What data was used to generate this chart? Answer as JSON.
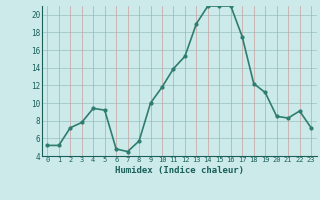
{
  "x": [
    0,
    1,
    2,
    3,
    4,
    5,
    6,
    7,
    8,
    9,
    10,
    11,
    12,
    13,
    14,
    15,
    16,
    17,
    18,
    19,
    20,
    21,
    22,
    23
  ],
  "y": [
    5.2,
    5.2,
    7.2,
    7.8,
    9.4,
    9.2,
    4.8,
    4.5,
    5.7,
    10.0,
    11.8,
    13.9,
    15.3,
    19.0,
    21.0,
    21.0,
    21.0,
    17.5,
    12.2,
    11.2,
    8.5,
    8.3,
    9.1,
    7.2
  ],
  "line_color": "#2e7d6e",
  "marker": "o",
  "marker_size": 2,
  "linewidth": 1.2,
  "bg_color": "#cceaea",
  "grid_major_color": "#b0d4d4",
  "grid_minor_color": "#e0b0b0",
  "xlabel": "Humidex (Indice chaleur)",
  "xlabel_color": "#1a5f5a",
  "tick_color": "#1a5f5a",
  "ylim": [
    4,
    21
  ],
  "xlim": [
    -0.5,
    23.5
  ],
  "yticks": [
    4,
    6,
    8,
    10,
    12,
    14,
    16,
    18,
    20
  ],
  "xticks": [
    0,
    1,
    2,
    3,
    4,
    5,
    6,
    7,
    8,
    9,
    10,
    11,
    12,
    13,
    14,
    15,
    16,
    17,
    18,
    19,
    20,
    21,
    22,
    23
  ],
  "xtick_labels": [
    "0",
    "1",
    "2",
    "3",
    "4",
    "5",
    "6",
    "7",
    "8",
    "9",
    "10",
    "11",
    "12",
    "13",
    "14",
    "15",
    "16",
    "17",
    "18",
    "19",
    "20",
    "21",
    "22",
    "23"
  ]
}
